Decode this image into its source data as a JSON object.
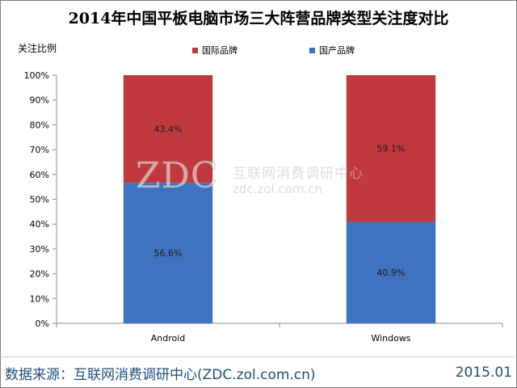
{
  "chart_data": {
    "type": "bar",
    "stacked": true,
    "title": "2014年中国平板电脑市场三大阵营品牌类型关注度对比",
    "ylabel": "关注比例",
    "categories": [
      "Android",
      "Windows"
    ],
    "series": [
      {
        "name": "国产品牌",
        "color": "#3f73c0",
        "values": [
          56.6,
          40.9
        ],
        "labels": [
          "56.6%",
          "40.9%"
        ]
      },
      {
        "name": "国际品牌",
        "color": "#c0393c",
        "values": [
          43.4,
          59.1
        ],
        "labels": [
          "43.4%",
          "59.1%"
        ]
      }
    ],
    "ylim": [
      0,
      100
    ],
    "yticks": [
      "0%",
      "10%",
      "20%",
      "30%",
      "40%",
      "50%",
      "60%",
      "70%",
      "80%",
      "90%",
      "100%"
    ],
    "legend": [
      {
        "name": "国际品牌",
        "color": "#c0393c"
      },
      {
        "name": "国产品牌",
        "color": "#3f73c0"
      }
    ],
    "legend_position": "top"
  },
  "watermark": {
    "logo": "ZDC",
    "name": "互联网消费调研中心",
    "url": "zdc.zol.com.cn"
  },
  "footer": {
    "source": "数据来源：互联网消费调研中心(ZDC.zol.com.cn)",
    "date": "2015.01"
  }
}
